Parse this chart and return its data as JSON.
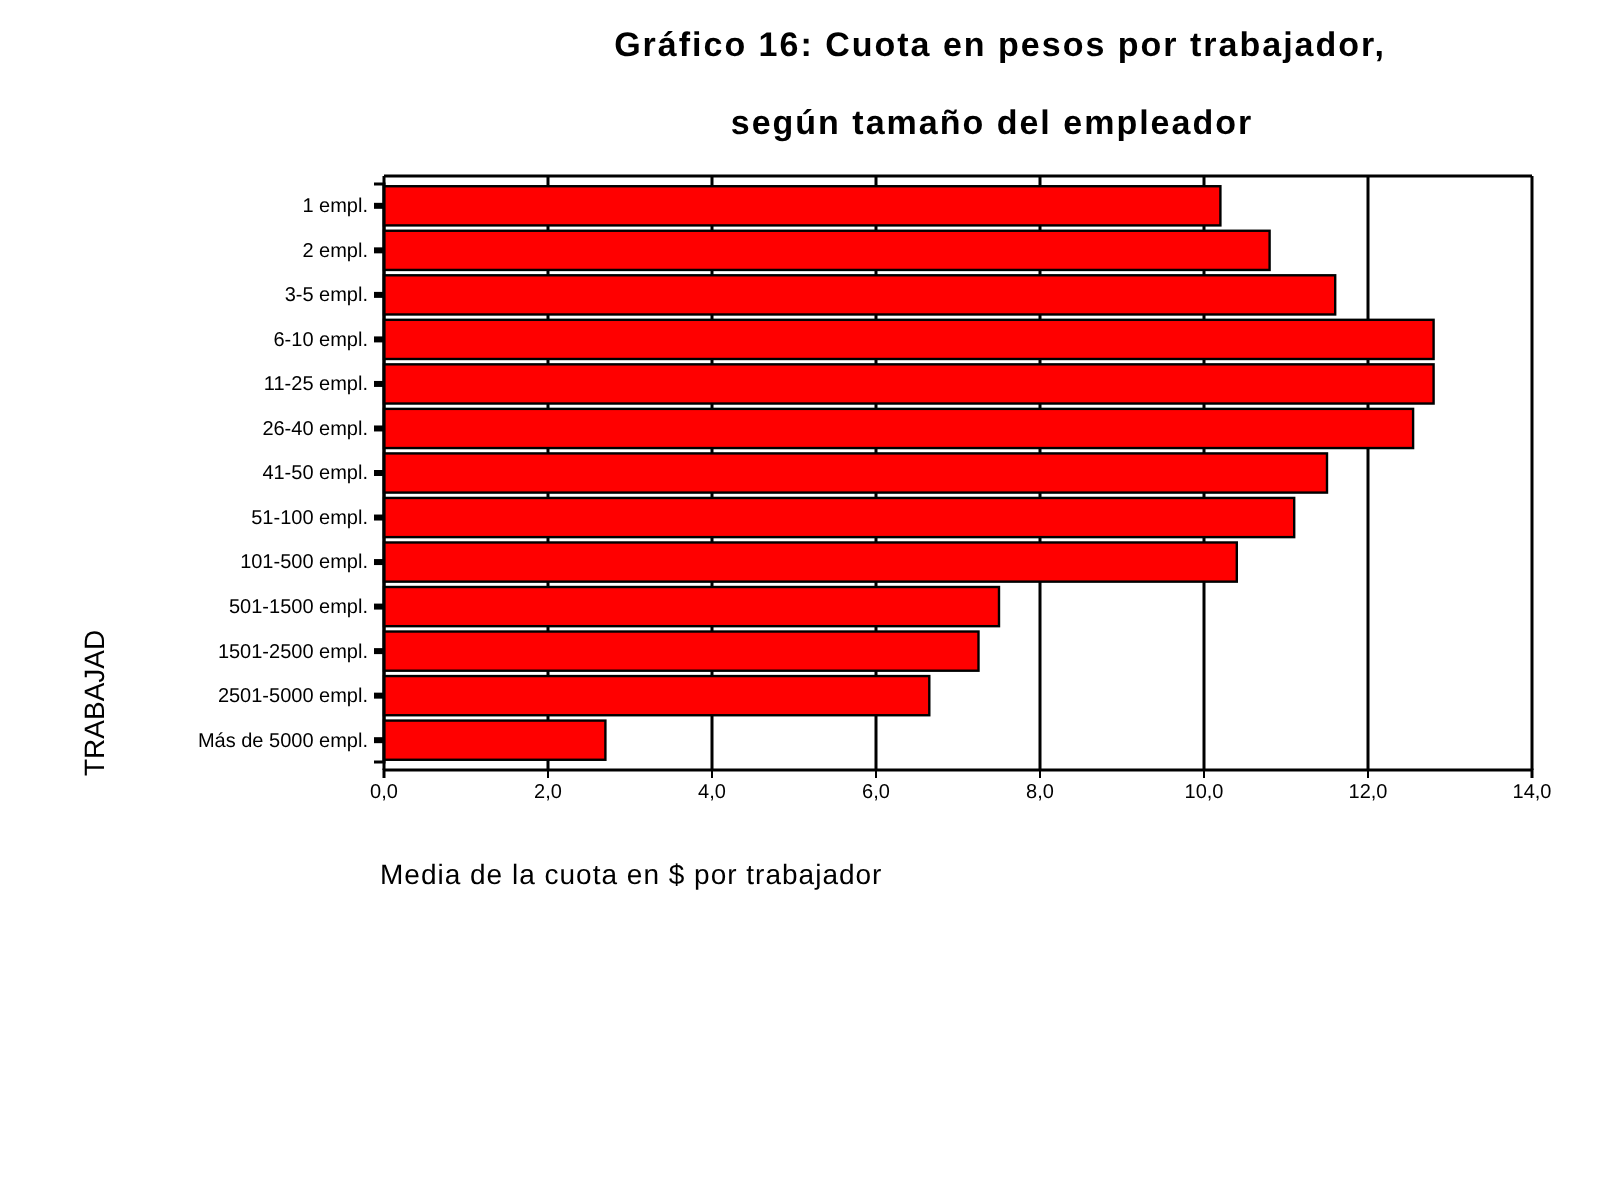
{
  "chart_data": {
    "type": "bar",
    "orientation": "horizontal",
    "title": "Gráfico 16: Cuota en pesos por trabajador,",
    "subtitle": "según tamaño del empleador",
    "xlabel": "Media de la cuota en $ por trabajador",
    "ylabel": "TRABAJAD",
    "categories": [
      "1 empl.",
      "2 empl.",
      "3-5 empl.",
      "6-10 empl.",
      "11-25 empl.",
      "26-40 empl.",
      "41-50 empl.",
      "51-100 empl.",
      "101-500 empl.",
      "501-1500 empl.",
      "1501-2500 empl.",
      "2501-5000 empl.",
      "Más de 5000 empl."
    ],
    "values": [
      10.2,
      10.8,
      11.6,
      12.8,
      12.8,
      12.55,
      11.5,
      11.1,
      10.4,
      7.5,
      7.25,
      6.65,
      2.7
    ],
    "color": "#ff0000",
    "xlim": [
      0,
      14
    ],
    "xticks": [
      {
        "value": 0,
        "label": "0,0"
      },
      {
        "value": 2,
        "label": "2,0"
      },
      {
        "value": 4,
        "label": "4,0"
      },
      {
        "value": 6,
        "label": "6,0"
      },
      {
        "value": 8,
        "label": "8,0"
      },
      {
        "value": 10,
        "label": "10,0"
      },
      {
        "value": 12,
        "label": "12,0"
      },
      {
        "value": 14,
        "label": "14,0"
      }
    ],
    "grid": "x"
  }
}
